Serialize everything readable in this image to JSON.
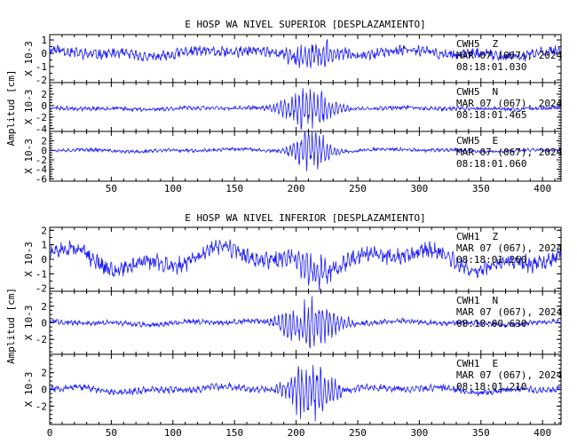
{
  "chart_data": [
    {
      "type": "line",
      "title": "E HOSP WA NIVEL SUPERIOR [DESPLAZAMIENTO]",
      "ylabel": "Amplitud [cm]",
      "xlim": [
        0,
        415
      ],
      "x_ticks": [
        "50",
        "100",
        "150",
        "200",
        "250",
        "300",
        "350",
        "400"
      ],
      "x_tick_values": [
        50,
        100,
        150,
        200,
        250,
        300,
        350,
        400
      ],
      "panels": [
        {
          "unit": "X 10-3",
          "ylim": [
            -2.2,
            1.4
          ],
          "y_ticks": [
            "1",
            "0",
            "-1",
            "-2"
          ],
          "y_tick_values": [
            1,
            0,
            -1,
            -2
          ],
          "station": "CWH5",
          "component": "Z",
          "date": "MAR 07 (067), 2024",
          "time": "08:18:01.030",
          "trace": {
            "noise": 0.38,
            "slow": 0.3,
            "offset": 0.0,
            "burst_amp": 1.15,
            "burst_center": 213,
            "burst_width": 20,
            "seed": 11
          }
        },
        {
          "unit": "X 10-3",
          "ylim": [
            -4.5,
            4.0
          ],
          "y_ticks": [
            "2",
            "0",
            "-2",
            "-4"
          ],
          "y_tick_values": [
            2,
            0,
            -2,
            -4
          ],
          "station": "CWH5",
          "component": "N",
          "date": "MAR 07 (067), 2024",
          "time": "08:18:01.465",
          "trace": {
            "noise": 0.35,
            "slow": 0.15,
            "offset": -0.5,
            "burst_amp": 3.6,
            "burst_center": 210,
            "burst_width": 22,
            "seed": 23
          }
        },
        {
          "unit": "X 10-3",
          "ylim": [
            -6.5,
            4.0
          ],
          "y_ticks": [
            "2",
            "0",
            "-2",
            "-4",
            "-6"
          ],
          "y_tick_values": [
            2,
            0,
            -2,
            -4,
            -6
          ],
          "station": "CWH5",
          "component": "E",
          "date": "MAR 07 (067), 2024",
          "time": "08:18:01.060",
          "trace": {
            "noise": 0.35,
            "slow": 0.3,
            "offset": 0.0,
            "burst_amp": 4.5,
            "burst_center": 212,
            "burst_width": 16,
            "seed": 37
          }
        }
      ]
    },
    {
      "type": "line",
      "title": "E HOSP WA NIVEL INFERIOR [DESPLAZAMIENTO]",
      "ylabel": "Amplitud [cm]",
      "xlim": [
        0,
        415
      ],
      "x_ticks": [
        "0",
        "50",
        "100",
        "150",
        "200",
        "250",
        "300",
        "350",
        "400"
      ],
      "x_tick_values": [
        0,
        50,
        100,
        150,
        200,
        250,
        300,
        350,
        400
      ],
      "panels": [
        {
          "unit": "X 10-3",
          "ylim": [
            -2.2,
            2.2
          ],
          "y_ticks": [
            "2",
            "1",
            "0",
            "-1",
            "-2"
          ],
          "y_tick_values": [
            2,
            1,
            0,
            -1,
            -2
          ],
          "station": "CWH1",
          "component": "Z",
          "date": "MAR 07 (067), 2024",
          "time": "08:18:01.260",
          "trace": {
            "noise": 0.55,
            "slow": 0.9,
            "offset": 0.0,
            "burst_amp": 0.9,
            "burst_center": 212,
            "burst_width": 25,
            "seed": 51
          }
        },
        {
          "unit": "X 10-3",
          "ylim": [
            -3.8,
            3.8
          ],
          "y_ticks": [
            "2",
            "0",
            "-2"
          ],
          "y_tick_values": [
            2,
            0,
            -2
          ],
          "station": "CWH1",
          "component": "N",
          "date": "MAR 07 (067), 2024",
          "time": "08:18:00.630",
          "trace": {
            "noise": 0.3,
            "slow": 0.25,
            "offset": 0.0,
            "burst_amp": 3.0,
            "burst_center": 212,
            "burst_width": 24,
            "seed": 67
          }
        },
        {
          "unit": "X 10-3",
          "ylim": [
            -4.2,
            4.2
          ],
          "y_ticks": [
            "2",
            "0",
            "-2"
          ],
          "y_tick_values": [
            2,
            0,
            -2
          ],
          "station": "CWH1",
          "component": "E",
          "date": "MAR 07 (067), 2024",
          "time": "08:18:01.210",
          "trace": {
            "noise": 0.4,
            "slow": 0.35,
            "offset": 0.0,
            "burst_amp": 3.6,
            "burst_center": 211,
            "burst_width": 20,
            "seed": 83
          }
        }
      ]
    }
  ],
  "colors": {
    "trace": "#1a1aff",
    "axis": "#000000",
    "background": "#ffffff"
  }
}
